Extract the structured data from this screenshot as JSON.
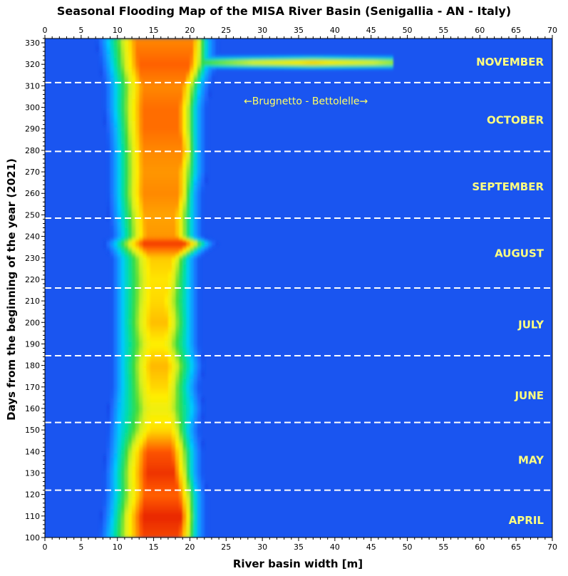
{
  "chart_data": {
    "type": "heatmap",
    "title": "Seasonal Flooding Map of the MISA River Basin (Senigallia - AN - Italy)",
    "xlabel": "River basin width [m]",
    "ylabel": "Days from the beginning of the year (2021)",
    "xlim": [
      0,
      70
    ],
    "ylim": [
      100,
      332
    ],
    "x_ticks": [
      0,
      5,
      10,
      15,
      20,
      25,
      30,
      35,
      40,
      45,
      50,
      55,
      60,
      65,
      70
    ],
    "y_ticks": [
      100,
      110,
      120,
      130,
      140,
      150,
      160,
      170,
      180,
      190,
      200,
      210,
      220,
      230,
      240,
      250,
      260,
      270,
      280,
      290,
      300,
      310,
      320,
      330
    ],
    "x_ticks_placement": "top-and-bottom",
    "colormap": [
      "#0a2fd8",
      "#1d6bff",
      "#00c8ff",
      "#00e0a0",
      "#3cdc3c",
      "#d8f020",
      "#ffee00",
      "#ffa500",
      "#ff5a00",
      "#e01400"
    ],
    "background_color": "#1a55f0",
    "boundary_color": "#ffffff",
    "month_boundaries": [
      122,
      153.5,
      184.5,
      216,
      248.5,
      279.5,
      311.5
    ],
    "months": [
      {
        "name": "APRIL",
        "day": 108
      },
      {
        "name": "MAY",
        "day": 136
      },
      {
        "name": "JUNE",
        "day": 166
      },
      {
        "name": "JULY",
        "day": 199
      },
      {
        "name": "AUGUST",
        "day": 232
      },
      {
        "name": "SEPTEMBER",
        "day": 263
      },
      {
        "name": "OCTOBER",
        "day": 294
      },
      {
        "name": "NOVEMBER",
        "day": 321
      }
    ],
    "annotation": {
      "text": "←Brugnetto - Bettolelle→",
      "x": 36,
      "y": 303
    },
    "channel_profile": [
      {
        "day": 100,
        "left": 8.8,
        "right": 21.0,
        "core_left": 13.5,
        "core_right": 18.5,
        "peak": 0.92
      },
      {
        "day": 110,
        "left": 9.2,
        "right": 21.0,
        "core_left": 13.5,
        "core_right": 18.8,
        "peak": 0.97
      },
      {
        "day": 120,
        "left": 9.5,
        "right": 21.0,
        "core_left": 13.8,
        "core_right": 18.5,
        "peak": 0.88
      },
      {
        "day": 130,
        "left": 9.5,
        "right": 20.5,
        "core_left": 14.0,
        "core_right": 17.8,
        "peak": 0.95
      },
      {
        "day": 140,
        "left": 9.8,
        "right": 20.5,
        "core_left": 14.0,
        "core_right": 17.5,
        "peak": 0.9
      },
      {
        "day": 150,
        "left": 10.0,
        "right": 20.0,
        "core_left": 14.5,
        "core_right": 17.5,
        "peak": 0.7
      },
      {
        "day": 160,
        "left": 10.2,
        "right": 20.5,
        "core_left": 14.5,
        "core_right": 17.0,
        "peak": 0.62
      },
      {
        "day": 170,
        "left": 10.5,
        "right": 20.0,
        "core_left": 14.5,
        "core_right": 16.8,
        "peak": 0.7
      },
      {
        "day": 180,
        "left": 10.5,
        "right": 20.5,
        "core_left": 14.5,
        "core_right": 17.0,
        "peak": 0.75
      },
      {
        "day": 190,
        "left": 10.5,
        "right": 20.0,
        "core_left": 14.5,
        "core_right": 16.5,
        "peak": 0.66
      },
      {
        "day": 200,
        "left": 10.5,
        "right": 20.0,
        "core_left": 14.5,
        "core_right": 16.8,
        "peak": 0.74
      },
      {
        "day": 210,
        "left": 10.5,
        "right": 20.0,
        "core_left": 14.5,
        "core_right": 16.5,
        "peak": 0.7
      },
      {
        "day": 220,
        "left": 10.5,
        "right": 20.0,
        "core_left": 14.5,
        "core_right": 17.0,
        "peak": 0.68
      },
      {
        "day": 230,
        "left": 10.5,
        "right": 20.0,
        "core_left": 14.5,
        "core_right": 17.5,
        "peak": 0.72
      },
      {
        "day": 237,
        "left": 9.5,
        "right": 22.5,
        "core_left": 13.5,
        "core_right": 19.5,
        "peak": 0.95
      },
      {
        "day": 240,
        "left": 10.5,
        "right": 20.5,
        "core_left": 14.0,
        "core_right": 18.0,
        "peak": 0.8
      },
      {
        "day": 250,
        "left": 10.2,
        "right": 20.5,
        "core_left": 13.8,
        "core_right": 18.0,
        "peak": 0.78
      },
      {
        "day": 260,
        "left": 10.0,
        "right": 20.5,
        "core_left": 13.5,
        "core_right": 18.5,
        "peak": 0.82
      },
      {
        "day": 270,
        "left": 10.0,
        "right": 21.0,
        "core_left": 13.5,
        "core_right": 18.5,
        "peak": 0.8
      },
      {
        "day": 280,
        "left": 10.0,
        "right": 21.0,
        "core_left": 13.5,
        "core_right": 19.0,
        "peak": 0.82
      },
      {
        "day": 290,
        "left": 9.8,
        "right": 21.0,
        "core_left": 13.5,
        "core_right": 18.5,
        "peak": 0.86
      },
      {
        "day": 300,
        "left": 9.5,
        "right": 21.0,
        "core_left": 13.5,
        "core_right": 18.5,
        "peak": 0.86
      },
      {
        "day": 310,
        "left": 9.5,
        "right": 21.5,
        "core_left": 13.5,
        "core_right": 19.0,
        "peak": 0.82
      },
      {
        "day": 320,
        "left": 9.0,
        "right": 22.5,
        "core_left": 13.0,
        "core_right": 20.0,
        "peak": 0.88
      },
      {
        "day": 332,
        "left": 8.5,
        "right": 22.5,
        "core_left": 12.5,
        "core_right": 20.5,
        "peak": 0.82
      }
    ],
    "flood_event": {
      "day": 321,
      "x_extent": 48,
      "peak_x": 37,
      "peak": 0.82
    }
  }
}
